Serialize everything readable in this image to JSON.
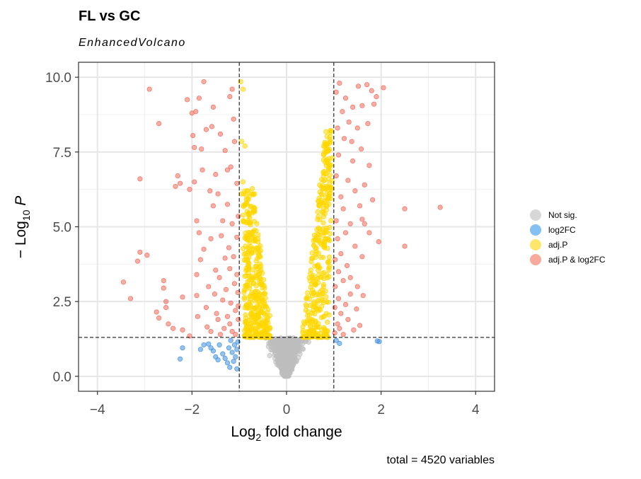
{
  "title": "FL vs GC",
  "subtitle": "EnhancedVolcano",
  "caption": "total = 4520 variables",
  "colors": {
    "not_sig": "#bdbdbd",
    "log2fc": "#3f8fe0",
    "adjp": "#ffd700",
    "both": "#f26b5b"
  },
  "legend": [
    {
      "label": "Not sig.",
      "color": "#d7d7d7"
    },
    {
      "label": "log2FC",
      "color": "#84c0f2"
    },
    {
      "label": "adj.P",
      "color": "#fde66a"
    },
    {
      "label": "adj.P & log2FC",
      "color": "#f7a99c"
    }
  ],
  "chart_data": {
    "type": "scatter",
    "title": "FL vs GC",
    "subtitle": "EnhancedVolcano",
    "xlabel": "Log2 fold change",
    "ylabel": "-Log10 P",
    "xlim": [
      -4.4,
      4.4
    ],
    "ylim": [
      -0.5,
      10.5
    ],
    "x_ticks": [
      -4,
      -2,
      0,
      2,
      4
    ],
    "y_ticks": [
      0.0,
      2.5,
      5.0,
      7.5,
      10.0
    ],
    "x_tick_labels": [
      "-4",
      "-2",
      "0",
      "2",
      "4"
    ],
    "y_tick_labels": [
      "0.0",
      "2.5",
      "5.0",
      "7.5",
      "10.0"
    ],
    "cutoff_lines": {
      "x": [
        -1,
        1
      ],
      "y": 1.3
    },
    "grid": true,
    "legend_position": "right",
    "total_variables": 4520,
    "series": [
      {
        "name": "log2FC",
        "points": [
          [
            -2.25,
            0.58
          ],
          [
            -2.2,
            0.95
          ],
          [
            -1.82,
            0.9
          ],
          [
            -1.75,
            1.05
          ],
          [
            -1.65,
            1.08
          ],
          [
            -1.6,
            0.95
          ],
          [
            -1.55,
            0.85
          ],
          [
            -1.5,
            0.65
          ],
          [
            -1.45,
            0.55
          ],
          [
            -1.42,
            1.05
          ],
          [
            -1.35,
            0.75
          ],
          [
            -1.3,
            0.6
          ],
          [
            -1.25,
            0.45
          ],
          [
            -1.22,
            0.95
          ],
          [
            -1.2,
            0.3
          ],
          [
            -1.18,
            1.2
          ],
          [
            -1.15,
            0.8
          ],
          [
            -1.12,
            0.5
          ],
          [
            -1.1,
            1.05
          ],
          [
            -1.08,
            0.65
          ],
          [
            -1.05,
            0.25
          ],
          [
            -1.05,
            0.9
          ],
          [
            -1.03,
            1.15
          ],
          [
            1.05,
            1.2
          ],
          [
            1.12,
            1.1
          ],
          [
            1.92,
            1.18
          ],
          [
            1.96,
            1.16
          ]
        ]
      },
      {
        "name": "adj.P & log2FC",
        "points": [
          [
            -3.45,
            3.15
          ],
          [
            -3.3,
            2.6
          ],
          [
            -3.15,
            3.85
          ],
          [
            -3.1,
            4.15
          ],
          [
            -3.1,
            6.6
          ],
          [
            -2.95,
            4.05
          ],
          [
            -2.9,
            9.6
          ],
          [
            -2.75,
            2.15
          ],
          [
            -2.7,
            8.45
          ],
          [
            -2.7,
            1.95
          ],
          [
            -2.6,
            3.2
          ],
          [
            -2.6,
            2.95
          ],
          [
            -2.55,
            2.5
          ],
          [
            -2.55,
            2.3
          ],
          [
            -2.5,
            1.75
          ],
          [
            -2.4,
            1.6
          ],
          [
            -2.35,
            6.35
          ],
          [
            -2.3,
            6.7
          ],
          [
            -2.25,
            6.45
          ],
          [
            -2.2,
            2.65
          ],
          [
            -2.2,
            1.55
          ],
          [
            -2.1,
            9.25
          ],
          [
            -2.05,
            1.35
          ],
          [
            -2.05,
            6.25
          ],
          [
            -2.0,
            8.8
          ],
          [
            -1.98,
            8.05
          ],
          [
            -1.95,
            7.65
          ],
          [
            -1.95,
            6.5
          ],
          [
            -1.92,
            8.85
          ],
          [
            -1.9,
            5.2
          ],
          [
            -1.9,
            3.4
          ],
          [
            -1.9,
            2.7
          ],
          [
            -1.88,
            2.0
          ],
          [
            -1.85,
            9.3
          ],
          [
            -1.85,
            4.8
          ],
          [
            -1.82,
            3.9
          ],
          [
            -1.8,
            7.6
          ],
          [
            -1.78,
            6.9
          ],
          [
            -1.75,
            9.85
          ],
          [
            -1.75,
            4.25
          ],
          [
            -1.7,
            8.25
          ],
          [
            -1.7,
            2.3
          ],
          [
            -1.68,
            1.65
          ],
          [
            -1.65,
            3.0
          ],
          [
            -1.62,
            6.2
          ],
          [
            -1.6,
            4.6
          ],
          [
            -1.6,
            1.5
          ],
          [
            -1.58,
            8.35
          ],
          [
            -1.55,
            9.0
          ],
          [
            -1.55,
            5.7
          ],
          [
            -1.52,
            2.75
          ],
          [
            -1.5,
            6.75
          ],
          [
            -1.5,
            3.55
          ],
          [
            -1.48,
            2.1
          ],
          [
            -1.45,
            1.9
          ],
          [
            -1.45,
            6.1
          ],
          [
            -1.42,
            3.3
          ],
          [
            -1.4,
            1.4
          ],
          [
            -1.4,
            8.1
          ],
          [
            -1.38,
            4.7
          ],
          [
            -1.35,
            2.55
          ],
          [
            -1.35,
            5.2
          ],
          [
            -1.32,
            1.6
          ],
          [
            -1.3,
            3.95
          ],
          [
            -1.3,
            7.55
          ],
          [
            -1.28,
            2.9
          ],
          [
            -1.25,
            6.9
          ],
          [
            -1.25,
            5.75
          ],
          [
            -1.25,
            2.0
          ],
          [
            -1.22,
            4.3
          ],
          [
            -1.2,
            9.35
          ],
          [
            -1.2,
            1.75
          ],
          [
            -1.2,
            3.6
          ],
          [
            -1.18,
            7.0
          ],
          [
            -1.18,
            2.45
          ],
          [
            -1.15,
            9.6
          ],
          [
            -1.15,
            5.1
          ],
          [
            -1.15,
            1.5
          ],
          [
            -1.12,
            8.6
          ],
          [
            -1.12,
            4.0
          ],
          [
            -1.1,
            3.1
          ],
          [
            -1.1,
            7.85
          ],
          [
            -1.08,
            2.2
          ],
          [
            -1.08,
            1.4
          ],
          [
            -1.05,
            6.45
          ],
          [
            -1.05,
            4.65
          ],
          [
            -1.05,
            3.4
          ],
          [
            -1.03,
            2.8
          ],
          [
            -1.02,
            1.9
          ],
          [
            -1.02,
            5.35
          ],
          [
            -1.02,
            2.35
          ],
          [
            1.02,
            1.45
          ],
          [
            1.02,
            2.3
          ],
          [
            1.03,
            3.0
          ],
          [
            1.03,
            3.9
          ],
          [
            1.05,
            5.2
          ],
          [
            1.05,
            6.7
          ],
          [
            1.05,
            9.5
          ],
          [
            1.08,
            1.75
          ],
          [
            1.08,
            4.6
          ],
          [
            1.08,
            8.3
          ],
          [
            1.1,
            2.6
          ],
          [
            1.1,
            3.5
          ],
          [
            1.1,
            7.4
          ],
          [
            1.12,
            1.6
          ],
          [
            1.12,
            9.8
          ],
          [
            1.15,
            2.1
          ],
          [
            1.15,
            6.0
          ],
          [
            1.15,
            4.1
          ],
          [
            1.18,
            8.85
          ],
          [
            1.2,
            3.2
          ],
          [
            1.2,
            1.4
          ],
          [
            1.2,
            5.6
          ],
          [
            1.22,
            7.95
          ],
          [
            1.25,
            2.4
          ],
          [
            1.25,
            9.3
          ],
          [
            1.25,
            4.8
          ],
          [
            1.28,
            3.7
          ],
          [
            1.3,
            6.55
          ],
          [
            1.3,
            1.9
          ],
          [
            1.32,
            8.5
          ],
          [
            1.35,
            3.3
          ],
          [
            1.35,
            5.1
          ],
          [
            1.35,
            2.75
          ],
          [
            1.4,
            9.0
          ],
          [
            1.4,
            7.2
          ],
          [
            1.42,
            1.55
          ],
          [
            1.45,
            4.35
          ],
          [
            1.45,
            6.2
          ],
          [
            1.48,
            2.25
          ],
          [
            1.5,
            8.3
          ],
          [
            1.5,
            3.0
          ],
          [
            1.52,
            9.7
          ],
          [
            1.55,
            5.7
          ],
          [
            1.55,
            1.7
          ],
          [
            1.58,
            7.6
          ],
          [
            1.6,
            4.0
          ],
          [
            1.6,
            9.05
          ],
          [
            1.62,
            2.7
          ],
          [
            1.65,
            6.4
          ],
          [
            1.65,
            5.1
          ],
          [
            1.7,
            9.75
          ],
          [
            1.72,
            8.45
          ],
          [
            1.75,
            7.05
          ],
          [
            1.8,
            9.55
          ],
          [
            1.82,
            5.9
          ],
          [
            1.85,
            9.1
          ],
          [
            1.9,
            9.35
          ],
          [
            1.95,
            4.5
          ],
          [
            2.05,
            9.65
          ],
          [
            2.5,
            5.6
          ],
          [
            2.5,
            4.35
          ],
          [
            3.25,
            5.65
          ],
          [
            1.38,
            7.85
          ],
          [
            1.6,
            5.25
          ],
          [
            1.75,
            4.8
          ]
        ]
      }
    ],
    "generated_groups_note_free": true
  }
}
